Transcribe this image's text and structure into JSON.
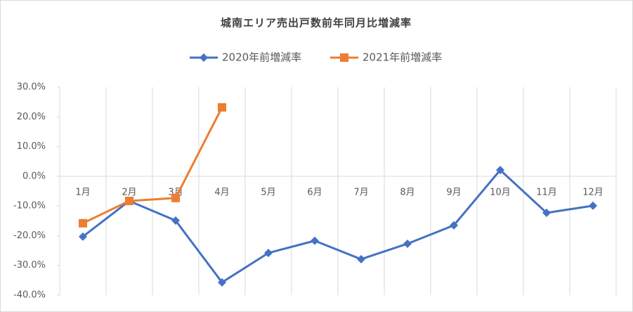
{
  "chart_data": {
    "type": "line",
    "title": "城南エリア売出戸数前年同月比増減率",
    "categories": [
      "1月",
      "2月",
      "3月",
      "4月",
      "5月",
      "6月",
      "7月",
      "8月",
      "9月",
      "10月",
      "11月",
      "12月"
    ],
    "series": [
      {
        "name": "2020年前増減率",
        "color": "#4472c4",
        "marker": "diamond",
        "values": [
          -20.3,
          -8.3,
          -14.9,
          -35.7,
          -25.8,
          -21.7,
          -27.9,
          -22.7,
          -16.5,
          2.1,
          -12.3,
          -9.9
        ]
      },
      {
        "name": "2021年前増減率",
        "color": "#ed7d31",
        "marker": "square",
        "values": [
          -15.8,
          -8.3,
          -7.3,
          23.2,
          null,
          null,
          null,
          null,
          null,
          null,
          null,
          null
        ]
      }
    ],
    "ylim": [
      -40,
      30
    ],
    "yticks": [
      {
        "value": -40,
        "label": "-40.0%"
      },
      {
        "value": -30,
        "label": "-30.0%"
      },
      {
        "value": -20,
        "label": "-20.0%"
      },
      {
        "value": -10,
        "label": "-10.0%"
      },
      {
        "value": 0,
        "label": "0.0%"
      },
      {
        "value": 10,
        "label": "10.0%"
      },
      {
        "value": 20,
        "label": "20.0%"
      },
      {
        "value": 30,
        "label": "30.0%"
      }
    ],
    "legend": "top"
  }
}
